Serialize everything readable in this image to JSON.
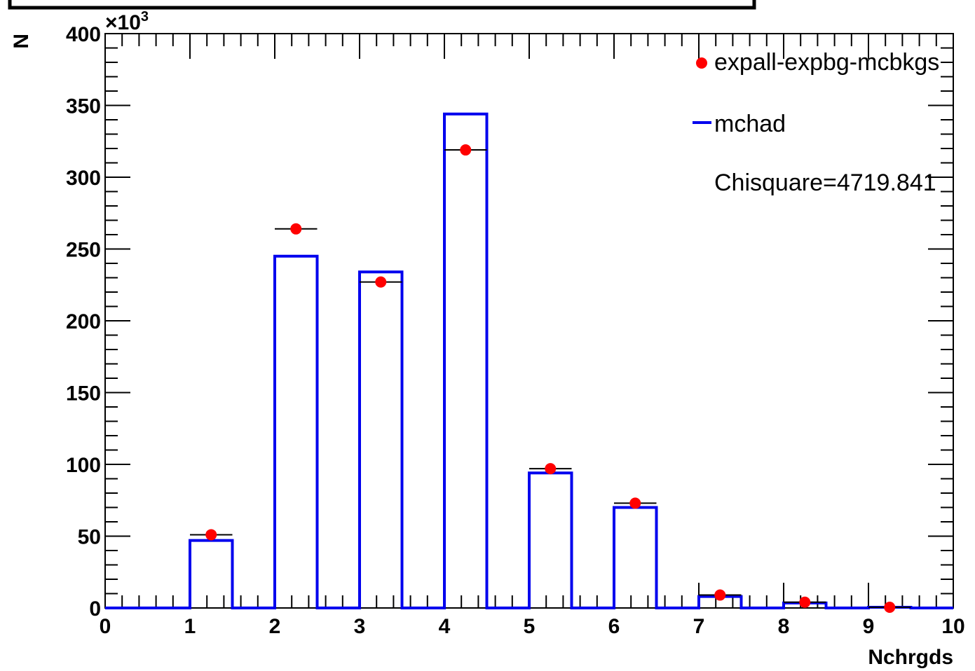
{
  "chart_data": {
    "type": "bar",
    "xlabel": "Nchrgds",
    "ylabel": "N",
    "y_multiplier_label": "×10",
    "y_multiplier_exponent": "3",
    "xlim": [
      0,
      10
    ],
    "ylim": [
      0,
      400
    ],
    "x_ticks": [
      "0",
      "1",
      "2",
      "3",
      "4",
      "5",
      "6",
      "7",
      "8",
      "9",
      "10"
    ],
    "y_ticks": [
      "0",
      "50",
      "100",
      "150",
      "200",
      "250",
      "300",
      "350",
      "400"
    ],
    "bin_edges": [
      0,
      0.5,
      1,
      1.5,
      2,
      2.5,
      3,
      3.5,
      4,
      4.5,
      5,
      5.5,
      6,
      6.5,
      7,
      7.5,
      8,
      8.5,
      9,
      9.5,
      10
    ],
    "series": [
      {
        "name": "mchad",
        "kind": "histogram",
        "color": "#0000ee",
        "values": [
          0,
          0,
          47,
          0,
          245,
          0,
          234,
          0,
          344,
          0,
          94,
          0,
          70,
          0,
          8,
          0,
          3.5,
          0,
          0.5,
          0
        ]
      },
      {
        "name": "expall-expbg-mcbkgs",
        "kind": "points",
        "color": "#ff0000",
        "x": [
          1.25,
          2.25,
          3.25,
          4.25,
          5.25,
          6.25,
          7.25,
          8.25,
          9.25
        ],
        "values": [
          51,
          264,
          227,
          319,
          97,
          73,
          9,
          4,
          0.5
        ],
        "x_err": 0.25
      }
    ],
    "annotation": "Chisquare=4719.841",
    "legend_position": "top-right",
    "grid": false
  }
}
